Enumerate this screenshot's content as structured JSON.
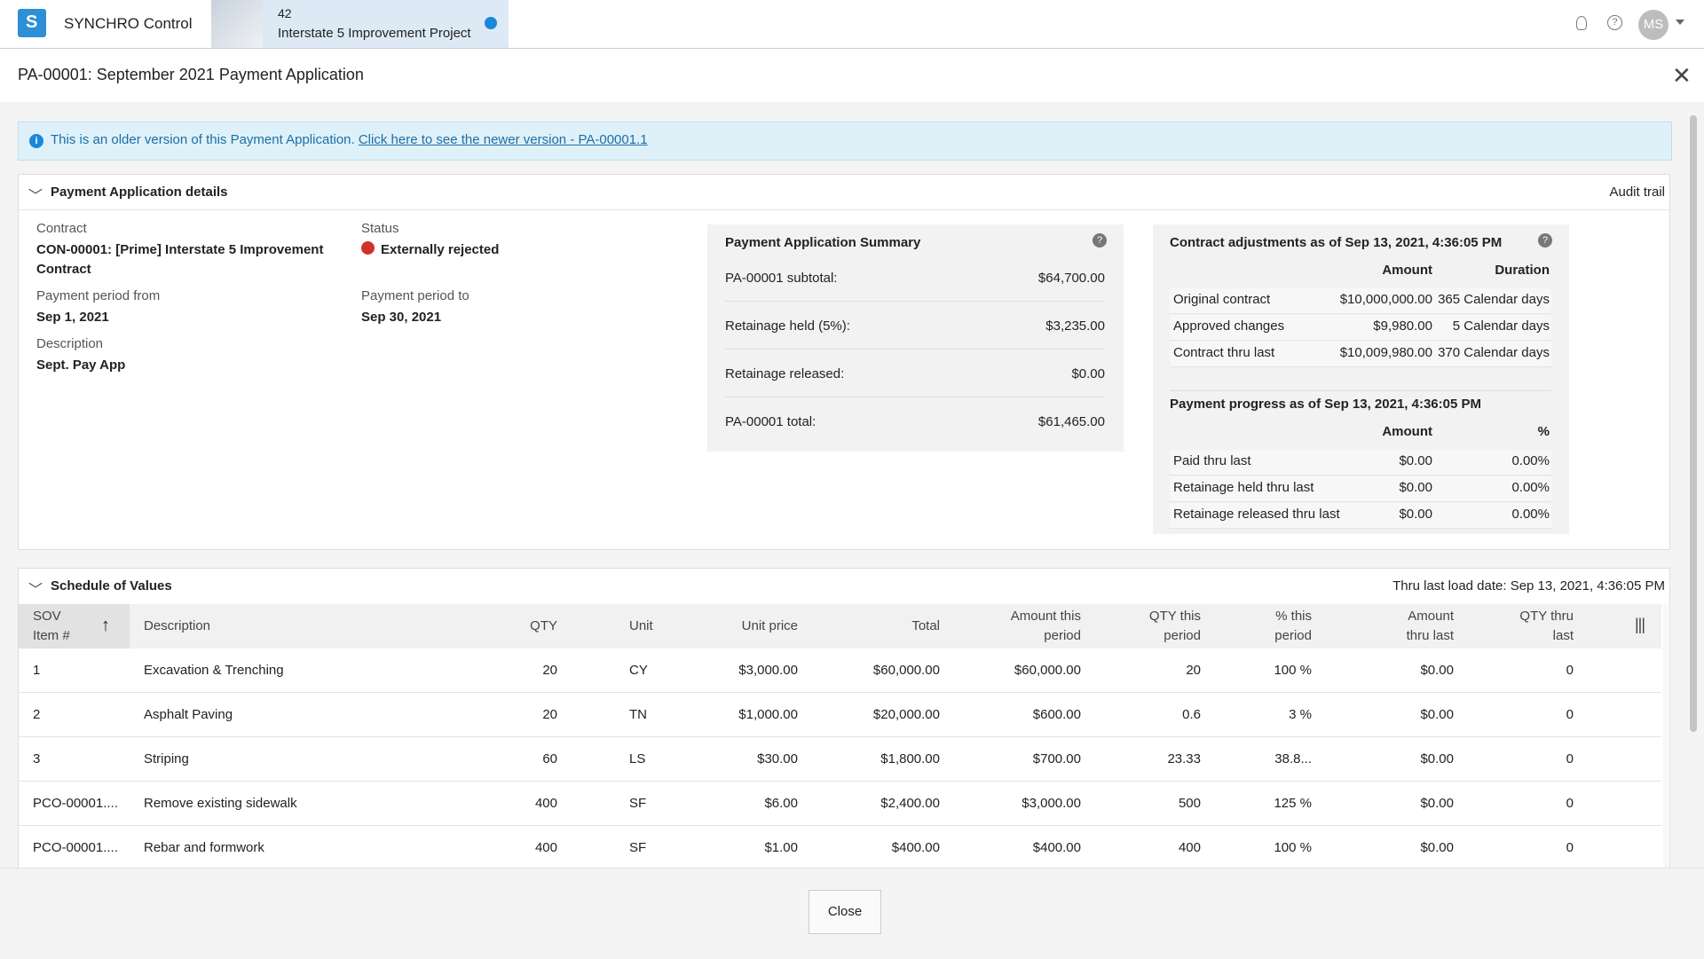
{
  "app": {
    "brand": "SYNCHRO Control",
    "project_number": "42",
    "project_name": "Interstate 5 Improvement Project",
    "user_initials": "MS"
  },
  "dialog": {
    "title": "PA-00001: September 2021 Payment Application",
    "banner_text": "This is an older version of this Payment Application.",
    "banner_link": "Click here to see the newer version - PA-00001.1"
  },
  "details": {
    "heading": "Payment Application details",
    "audit_trail": "Audit trail",
    "fields": [
      {
        "label": "Contract",
        "value": "CON-00001: [Prime] Interstate 5 Improvement Contract"
      },
      {
        "label": "Status",
        "value": "Externally rejected"
      },
      {
        "label": "Payment period from",
        "value": "Sep 1, 2021"
      },
      {
        "label": "Payment period to",
        "value": "Sep 30, 2021"
      },
      {
        "label": "Description",
        "value": "Sept. Pay App"
      }
    ]
  },
  "summary": {
    "title": "Payment Application Summary",
    "rows": [
      [
        "PA-00001 subtotal:",
        "$64,700.00"
      ],
      [
        "Retainage held (5%):",
        "$3,235.00"
      ],
      [
        "Retainage released:",
        "$0.00"
      ],
      [
        "PA-00001 total:",
        "$61,465.00"
      ]
    ]
  },
  "adjustments": {
    "title": "Contract adjustments as of Sep 13, 2021, 4:36:05 PM",
    "columns": [
      "Amount",
      "Duration"
    ],
    "rows": [
      [
        "Original contract",
        "$10,000,000.00",
        "365 Calendar days"
      ],
      [
        "Approved changes",
        "$9,980.00",
        "5 Calendar days"
      ],
      [
        "Contract thru last",
        "$10,009,980.00",
        "370 Calendar days"
      ]
    ]
  },
  "progress": {
    "title": "Payment progress as of Sep 13, 2021, 4:36:05 PM",
    "columns": [
      "Amount",
      "%"
    ],
    "rows": [
      [
        "Paid thru last",
        "$0.00",
        "0.00%"
      ],
      [
        "Retainage held thru last",
        "$0.00",
        "0.00%"
      ],
      [
        "Retainage released thru last",
        "$0.00",
        "0.00%"
      ]
    ]
  },
  "sov": {
    "heading": "Schedule of Values",
    "load_date": "Thru last load date: Sep 13, 2021, 4:36:05 PM",
    "columns": [
      "SOV Item #",
      "Description",
      "QTY",
      "Unit",
      "Unit price",
      "Total",
      "Amount this period",
      "QTY this period",
      "% this period",
      "Amount thru last",
      "QTY thru last"
    ],
    "rows": [
      [
        "1",
        "Excavation & Trenching",
        "20",
        "CY",
        "$3,000.00",
        "$60,000.00",
        "$60,000.00",
        "20",
        "100 %",
        "$0.00",
        "0"
      ],
      [
        "2",
        "Asphalt Paving",
        "20",
        "TN",
        "$1,000.00",
        "$20,000.00",
        "$600.00",
        "0.6",
        "3 %",
        "$0.00",
        "0"
      ],
      [
        "3",
        "Striping",
        "60",
        "LS",
        "$30.00",
        "$1,800.00",
        "$700.00",
        "23.33",
        "38.8...",
        "$0.00",
        "0"
      ],
      [
        "PCO-00001....",
        "Remove existing sidewalk",
        "400",
        "SF",
        "$6.00",
        "$2,400.00",
        "$3,000.00",
        "500",
        "125 %",
        "$0.00",
        "0"
      ],
      [
        "PCO-00001....",
        "Rebar and formwork",
        "400",
        "SF",
        "$1.00",
        "$400.00",
        "$400.00",
        "400",
        "100 %",
        "$0.00",
        "0"
      ]
    ]
  },
  "footer": {
    "close": "Close"
  }
}
